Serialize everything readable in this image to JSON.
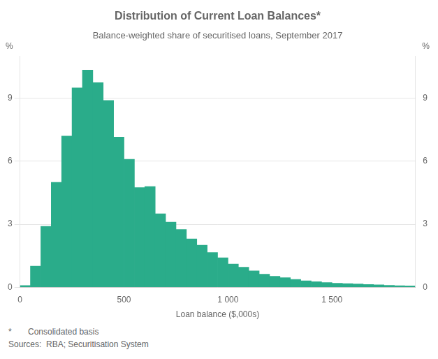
{
  "chart_data": {
    "type": "histogram",
    "title": "Distribution of Current Loan Balances*",
    "subtitle": "Balance-weighted share of securitised loans, September 2017",
    "xlabel": "Loan balance ($,000s)",
    "ylabel": "%",
    "y2label": "%",
    "footnotes": [
      "*       Consolidated basis",
      "Sources:  RBA; Securitisation System"
    ],
    "color": "#2aac8a",
    "bins": [
      0,
      50,
      100,
      150,
      200,
      250,
      300,
      350,
      400,
      450,
      500,
      550,
      600,
      650,
      700,
      750,
      800,
      850,
      900,
      950,
      1000,
      1050,
      1100,
      1150,
      1200,
      1250,
      1300,
      1350,
      1400,
      1450,
      1500,
      1550,
      1600,
      1650,
      1700,
      1750,
      1800,
      1850,
      1900
    ],
    "values": [
      0.08,
      1.0,
      2.9,
      5.0,
      7.2,
      9.5,
      10.35,
      9.75,
      8.9,
      7.15,
      6.1,
      4.75,
      4.8,
      3.5,
      3.1,
      2.75,
      2.3,
      2.0,
      1.65,
      1.4,
      1.1,
      0.95,
      0.78,
      0.62,
      0.52,
      0.45,
      0.37,
      0.3,
      0.26,
      0.22,
      0.19,
      0.17,
      0.15,
      0.13,
      0.11,
      0.09,
      0.07,
      0.06
    ],
    "xlim": [
      0,
      1900
    ],
    "xticks": [
      0,
      500,
      {
        "value": 1000,
        "label": "1 000"
      },
      {
        "value": 1500,
        "label": "1 500"
      }
    ],
    "ylim": [
      0,
      11
    ],
    "yticks": [
      0,
      3,
      6,
      9
    ],
    "y2lim": [
      0,
      11
    ],
    "y2ticks": [
      0,
      3,
      6,
      9
    ],
    "grid": true,
    "legend": false
  }
}
